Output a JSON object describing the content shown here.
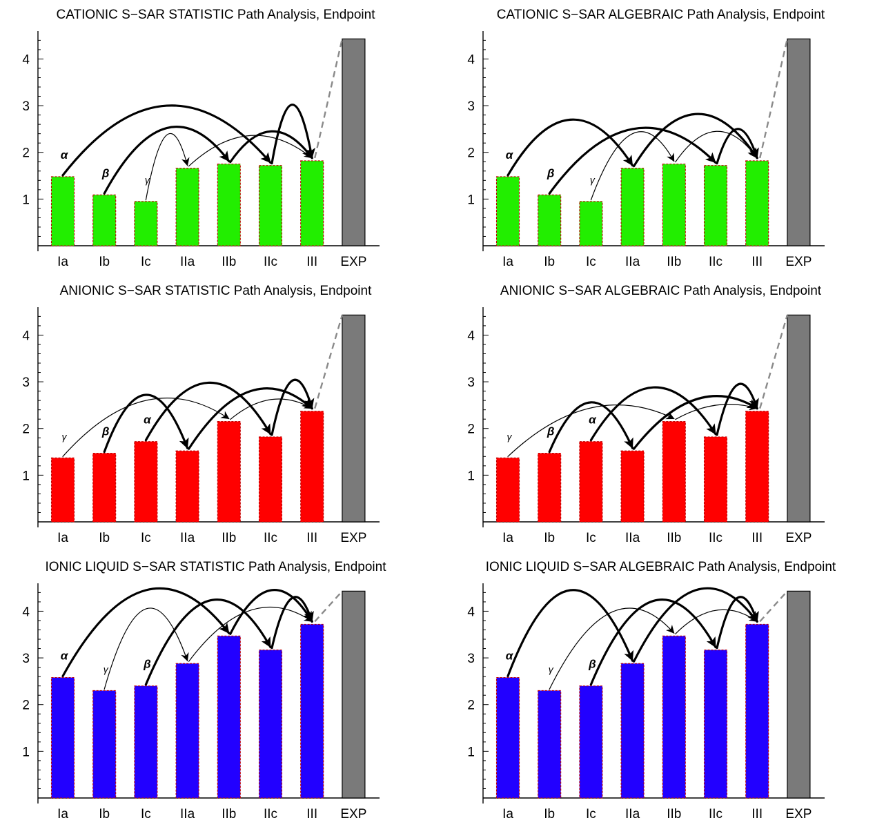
{
  "chart_data": [
    {
      "type": "bar",
      "title": "CATIONIC S−SAR STATISTIC Path Analysis,  Endpoint",
      "categories": [
        "Ia",
        "Ib",
        "Ic",
        "IIa",
        "IIb",
        "IIc",
        "III",
        "EXP"
      ],
      "values": [
        1.48,
        1.09,
        0.95,
        1.66,
        1.75,
        1.72,
        1.82,
        4.43
      ],
      "colors": [
        "#22ee00",
        "#22ee00",
        "#22ee00",
        "#22ee00",
        "#22ee00",
        "#22ee00",
        "#22ee00",
        "#7a7a7a"
      ],
      "yticks": [
        1,
        2,
        3,
        4
      ],
      "ylim": [
        0,
        4.45
      ],
      "paths": [
        {
          "label": "α",
          "weight": "heavy",
          "hops": [
            [
              0,
              5,
              3.0
            ],
            [
              5,
              6,
              3.02
            ]
          ]
        },
        {
          "label": "β",
          "weight": "heavy",
          "hops": [
            [
              1,
              4,
              2.52
            ],
            [
              4,
              6,
              2.45
            ]
          ]
        },
        {
          "label": "γ",
          "weight": "light",
          "hops": [
            [
              2,
              3,
              2.37
            ],
            [
              3,
              6,
              2.36
            ]
          ]
        }
      ]
    },
    {
      "type": "bar",
      "title": "CATIONIC S−SAR ALGEBRAIC Path Analysis,  Endpoint",
      "categories": [
        "Ia",
        "Ib",
        "Ic",
        "IIa",
        "IIb",
        "IIc",
        "III",
        "EXP"
      ],
      "values": [
        1.48,
        1.09,
        0.95,
        1.66,
        1.75,
        1.72,
        1.82,
        4.43
      ],
      "colors": [
        "#22ee00",
        "#22ee00",
        "#22ee00",
        "#22ee00",
        "#22ee00",
        "#22ee00",
        "#22ee00",
        "#7a7a7a"
      ],
      "yticks": [
        1,
        2,
        3,
        4
      ],
      "ylim": [
        0,
        4.45
      ],
      "paths": [
        {
          "label": "α",
          "weight": "heavy",
          "hops": [
            [
              0,
              3,
              2.7
            ],
            [
              3,
              6,
              2.82
            ]
          ]
        },
        {
          "label": "β",
          "weight": "heavy",
          "hops": [
            [
              1,
              5,
              2.5
            ],
            [
              5,
              6,
              2.5
            ]
          ]
        },
        {
          "label": "γ",
          "weight": "light",
          "hops": [
            [
              2,
              4,
              2.4
            ],
            [
              4,
              6,
              2.45
            ]
          ]
        }
      ]
    },
    {
      "type": "bar",
      "title": "ANIONIC S−SAR STATISTIC Path Analysis,  Endpoint",
      "categories": [
        "Ia",
        "Ib",
        "Ic",
        "IIa",
        "IIb",
        "IIc",
        "III",
        "EXP"
      ],
      "values": [
        1.37,
        1.47,
        1.72,
        1.52,
        2.15,
        1.82,
        2.37,
        4.43
      ],
      "colors": [
        "#ff0000",
        "#ff0000",
        "#ff0000",
        "#ff0000",
        "#ff0000",
        "#ff0000",
        "#ff0000",
        "#7a7a7a"
      ],
      "yticks": [
        1,
        2,
        3,
        4
      ],
      "ylim": [
        0,
        4.45
      ],
      "paths": [
        {
          "label": "α",
          "weight": "heavy",
          "hops": [
            [
              2,
              5,
              2.98
            ],
            [
              5,
              6,
              3.02
            ]
          ]
        },
        {
          "label": "β",
          "weight": "heavy",
          "hops": [
            [
              1,
              3,
              2.72
            ],
            [
              3,
              6,
              2.8
            ]
          ]
        },
        {
          "label": "γ",
          "weight": "light",
          "hops": [
            [
              0,
              4,
              2.6
            ],
            [
              4,
              6,
              2.62
            ]
          ]
        }
      ]
    },
    {
      "type": "bar",
      "title": "ANIONIC S−SAR ALGEBRAIC Path Analysis,  Endpoint",
      "categories": [
        "Ia",
        "Ib",
        "Ic",
        "IIa",
        "IIb",
        "IIc",
        "III",
        "EXP"
      ],
      "values": [
        1.37,
        1.47,
        1.72,
        1.52,
        2.15,
        1.82,
        2.37,
        4.43
      ],
      "colors": [
        "#ff0000",
        "#ff0000",
        "#ff0000",
        "#ff0000",
        "#ff0000",
        "#ff0000",
        "#ff0000",
        "#7a7a7a"
      ],
      "yticks": [
        1,
        2,
        3,
        4
      ],
      "ylim": [
        0,
        4.45
      ],
      "paths": [
        {
          "label": "α",
          "weight": "heavy",
          "hops": [
            [
              2,
              5,
              2.88
            ],
            [
              5,
              6,
              2.93
            ]
          ]
        },
        {
          "label": "β",
          "weight": "heavy",
          "hops": [
            [
              1,
              3,
              2.56
            ],
            [
              3,
              6,
              2.62
            ]
          ]
        },
        {
          "label": "γ",
          "weight": "light",
          "hops": [
            [
              0,
              4,
              2.44
            ],
            [
              4,
              6,
              2.5
            ]
          ]
        }
      ]
    },
    {
      "type": "bar",
      "title": "IONIC LIQUID S−SAR STATISTIC Path Analysis,  Endpoint",
      "categories": [
        "Ia",
        "Ib",
        "Ic",
        "IIa",
        "IIb",
        "IIc",
        "III",
        "EXP"
      ],
      "values": [
        2.58,
        2.3,
        2.4,
        2.88,
        3.47,
        3.17,
        3.72,
        4.43
      ],
      "colors": [
        "#2200ff",
        "#2200ff",
        "#2200ff",
        "#2200ff",
        "#2200ff",
        "#2200ff",
        "#2200ff",
        "#7a7a7a"
      ],
      "yticks": [
        1,
        2,
        3,
        4
      ],
      "ylim": [
        0,
        4.45
      ],
      "paths": [
        {
          "label": "α",
          "weight": "heavy",
          "hops": [
            [
              0,
              4,
              4.45
            ],
            [
              4,
              6,
              4.45
            ]
          ]
        },
        {
          "label": "β",
          "weight": "heavy",
          "hops": [
            [
              2,
              5,
              4.22
            ],
            [
              5,
              6,
              4.28
            ]
          ]
        },
        {
          "label": "γ",
          "weight": "light",
          "hops": [
            [
              1,
              3,
              4.05
            ],
            [
              3,
              6,
              4.02
            ]
          ]
        }
      ]
    },
    {
      "type": "bar",
      "title": "IONIC LIQUID S−SAR ALGEBRAIC Path Analysis,  Endpoint",
      "categories": [
        "Ia",
        "Ib",
        "Ic",
        "IIa",
        "IIb",
        "IIc",
        "III",
        "EXP"
      ],
      "values": [
        2.58,
        2.3,
        2.4,
        2.88,
        3.47,
        3.17,
        3.72,
        4.43
      ],
      "colors": [
        "#2200ff",
        "#2200ff",
        "#2200ff",
        "#2200ff",
        "#2200ff",
        "#2200ff",
        "#2200ff",
        "#7a7a7a"
      ],
      "yticks": [
        1,
        2,
        3,
        4
      ],
      "ylim": [
        0,
        4.45
      ],
      "paths": [
        {
          "label": "α",
          "weight": "heavy",
          "hops": [
            [
              0,
              3,
              4.45
            ],
            [
              3,
              6,
              4.45
            ]
          ]
        },
        {
          "label": "β",
          "weight": "heavy",
          "hops": [
            [
              2,
              5,
              4.22
            ],
            [
              5,
              6,
              4.28
            ]
          ]
        },
        {
          "label": "γ",
          "weight": "light",
          "hops": [
            [
              1,
              4,
              3.98
            ],
            [
              4,
              6,
              4.02
            ]
          ]
        }
      ]
    }
  ]
}
